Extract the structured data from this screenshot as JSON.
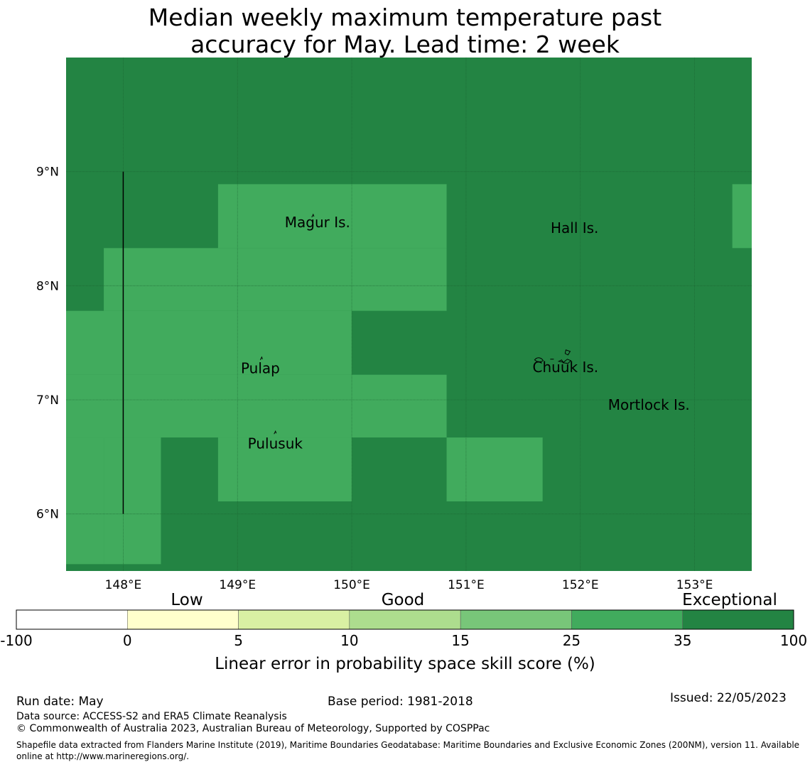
{
  "title": {
    "line1": "Median weekly maximum temperature past",
    "line2": "accuracy for May. Lead time: 2 week"
  },
  "map": {
    "lon_range": [
      147.5,
      153.5
    ],
    "lat_range": [
      5.5,
      10.0
    ],
    "lon_ticks": [
      {
        "value": 148,
        "label": "148°E"
      },
      {
        "value": 149,
        "label": "149°E"
      },
      {
        "value": 150,
        "label": "150°E"
      },
      {
        "value": 151,
        "label": "151°E"
      },
      {
        "value": 152,
        "label": "152°E"
      },
      {
        "value": 153,
        "label": "153°E"
      }
    ],
    "lat_ticks": [
      {
        "value": 9,
        "label": "9°N"
      },
      {
        "value": 8,
        "label": "8°N"
      },
      {
        "value": 7,
        "label": "7°N"
      },
      {
        "value": 6,
        "label": "6°N"
      }
    ],
    "background_category": "Exceptional",
    "regions": [
      {
        "category": "35-25",
        "lon": [
          148.83,
          150.83
        ],
        "lat": [
          8.33,
          8.89
        ]
      },
      {
        "category": "35-25",
        "lon": [
          147.83,
          150.83
        ],
        "lat": [
          7.78,
          8.33
        ]
      },
      {
        "category": "35-25",
        "lon": [
          147.5,
          150.0
        ],
        "lat": [
          7.22,
          7.78
        ]
      },
      {
        "category": "35-25",
        "lon": [
          147.5,
          150.83
        ],
        "lat": [
          6.67,
          7.22
        ]
      },
      {
        "category": "35-25",
        "lon": [
          147.5,
          147.83
        ],
        "lat": [
          5.56,
          6.67
        ]
      },
      {
        "category": "35-25",
        "lon": [
          147.83,
          148.33
        ],
        "lat": [
          5.56,
          6.67
        ]
      },
      {
        "category": "35-25",
        "lon": [
          148.83,
          150.0
        ],
        "lat": [
          6.11,
          6.67
        ]
      },
      {
        "category": "35-25",
        "lon": [
          150.83,
          151.67
        ],
        "lat": [
          6.11,
          6.67
        ]
      },
      {
        "category": "35-25",
        "lon": [
          153.33,
          153.5
        ],
        "lat": [
          8.33,
          8.89
        ]
      }
    ],
    "boundary_line": {
      "lon": 148.0,
      "lat": [
        6.0,
        9.0
      ]
    },
    "places": [
      {
        "name": "Magur Is.",
        "lon": 149.7,
        "lat": 8.55
      },
      {
        "name": "Hall Is.",
        "lon": 151.95,
        "lat": 8.5
      },
      {
        "name": "Pulap",
        "lon": 149.2,
        "lat": 7.27
      },
      {
        "name": "Chuuk Is.",
        "lon": 151.87,
        "lat": 7.28
      },
      {
        "name": "Mortlock Is.",
        "lon": 152.6,
        "lat": 6.95
      },
      {
        "name": "Pulusuk",
        "lon": 149.33,
        "lat": 6.61
      }
    ]
  },
  "legend": {
    "bins": [
      {
        "from": "-100",
        "to": "0",
        "color": "#ffffff"
      },
      {
        "from": "0",
        "to": "5",
        "color": "#ffffcc"
      },
      {
        "from": "5",
        "to": "10",
        "color": "#d9f0a3"
      },
      {
        "from": "10",
        "to": "15",
        "color": "#addd8e"
      },
      {
        "from": "15",
        "to": "25",
        "color": "#78c679"
      },
      {
        "from": "25",
        "to": "35",
        "color": "#41ab5d"
      },
      {
        "from": "35",
        "to": "100",
        "color": "#238443"
      }
    ],
    "tick_labels": [
      "-100",
      "0",
      "5",
      "10",
      "15",
      "25",
      "35",
      "100"
    ],
    "category_labels": [
      "Low",
      "Good",
      "Exceptional"
    ],
    "axis_label": "Linear error in probability space skill score (%)"
  },
  "colors": {
    "exceptional": "#238443",
    "high": "#41ab5d",
    "grid": "#1a5e2f"
  },
  "footer": {
    "run_date": "Run date: May",
    "base_period": "Base period: 1981-2018",
    "issued": "Issued: 22/05/2023",
    "data_source": "Data source: ACCESS-S2 and ERA5 Climate Reanalysis",
    "copyright": "© Commonwealth of Australia 2023, Australian Bureau of Meteorology, Supported by COSPPac",
    "shapefile_note": "Shapefile data extracted from Flanders Marine Institute (2019), Maritime Boundaries Geodatabase: Maritime Boundaries and Exclusive Economic Zones (200NM), version 11. Available online at http://www.marineregions.org/."
  }
}
